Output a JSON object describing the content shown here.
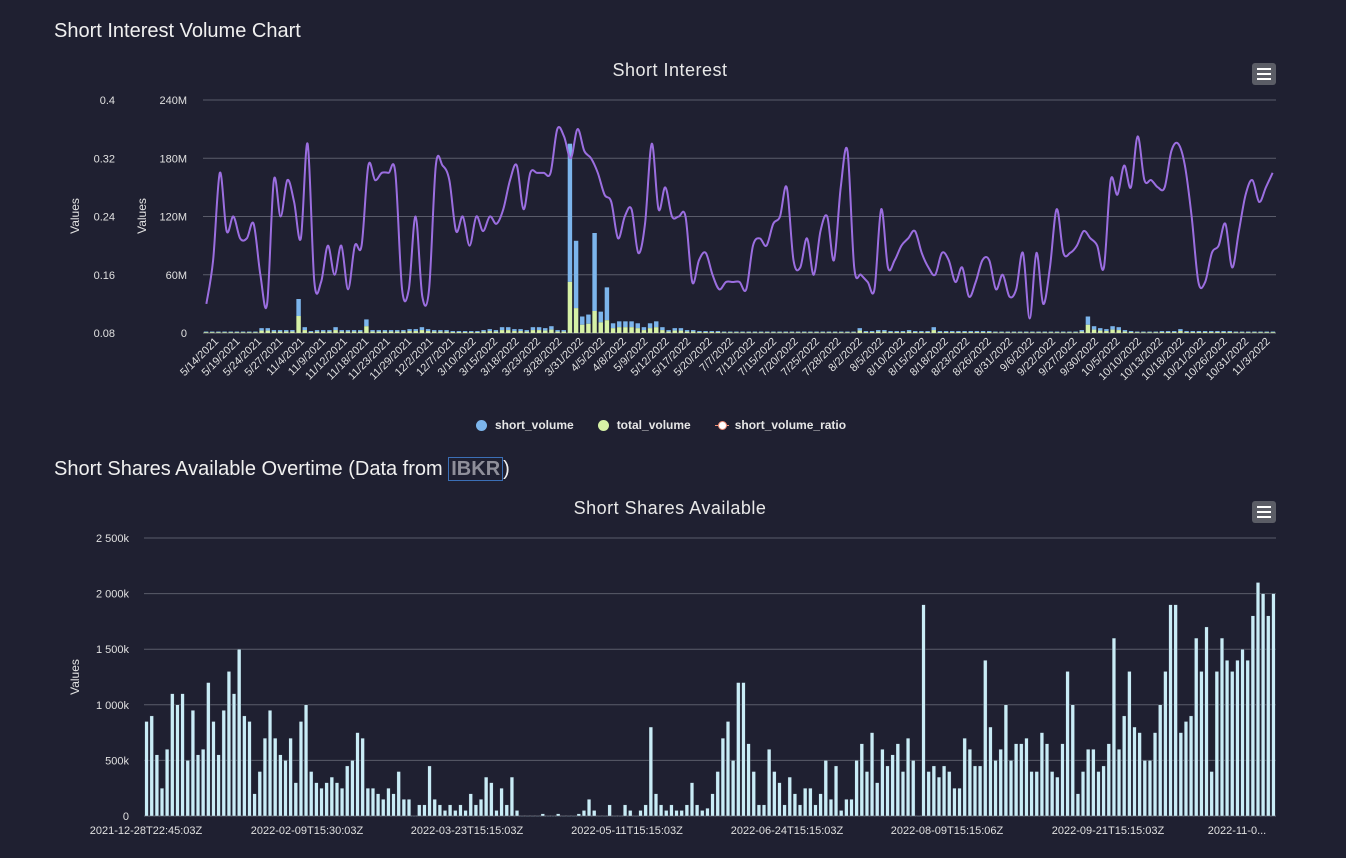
{
  "section1_title": "Short Interest Volume Chart",
  "section2": {
    "text": "Short Shares Available Overtime (Data from ",
    "link": "IBKR",
    "suffix": ")"
  },
  "colors": {
    "short_volume": "#7cb5ec",
    "total_volume": "#d6f1a6",
    "ratio": "#9b6ee0",
    "bars2": "#c9ecf6",
    "grid": "#5a5c6a",
    "background": "#1f2031"
  },
  "icons": {
    "menu": "hamburger-menu-icon"
  },
  "chart_data": [
    {
      "type": "bar",
      "title": "Short Interest",
      "ylabel_left": "Values",
      "ylabel_right": "Values",
      "y_volume_ticks": [
        "0",
        "60M",
        "120M",
        "180M",
        "240M"
      ],
      "y_ratio_ticks": [
        "0.08",
        "0.16",
        "0.24",
        "0.32",
        "0.4"
      ],
      "volume_range": [
        0,
        240000000
      ],
      "ratio_range": [
        0.08,
        0.4
      ],
      "x_tick_labels": [
        "5/14/2021",
        "5/19/2021",
        "5/24/2021",
        "5/27/2021",
        "11/4/2021",
        "11/9/2021",
        "11/12/2021",
        "11/18/2021",
        "11/23/2021",
        "11/29/2021",
        "12/2/2021",
        "12/7/2021",
        "3/10/2022",
        "3/15/2022",
        "3/18/2022",
        "3/23/2022",
        "3/28/2022",
        "3/31/2022",
        "4/5/2022",
        "4/8/2022",
        "5/9/2022",
        "5/12/2022",
        "5/17/2022",
        "5/20/2022",
        "7/7/2022",
        "7/12/2022",
        "7/15/2022",
        "7/20/2022",
        "7/25/2022",
        "7/28/2022",
        "8/2/2022",
        "8/5/2022",
        "8/10/2022",
        "8/15/2022",
        "8/18/2022",
        "8/23/2022",
        "8/26/2022",
        "8/31/2022",
        "9/6/2022",
        "9/22/2022",
        "9/27/2022",
        "9/30/2022",
        "10/5/2022",
        "10/10/2022",
        "10/13/2022",
        "10/18/2022",
        "10/21/2022",
        "10/26/2022",
        "10/31/2022",
        "11/3/2022"
      ],
      "legend": [
        "short_volume",
        "total_volume",
        "short_volume_ratio"
      ],
      "total_volume": [
        1.5,
        1.5,
        1.5,
        1.5,
        1.5,
        1.5,
        1.5,
        1.5,
        1.5,
        5,
        5,
        3,
        3,
        3,
        3,
        35,
        6,
        2,
        3,
        3,
        3,
        6,
        3,
        3,
        3,
        3,
        14,
        3,
        3,
        3,
        3,
        3,
        3,
        4,
        4,
        6,
        4,
        3,
        3,
        3,
        2,
        2,
        2,
        2,
        2,
        3,
        4,
        3,
        6,
        6,
        4,
        4,
        3,
        6,
        6,
        5,
        7,
        3,
        3,
        195,
        95,
        17,
        19,
        103,
        22,
        47,
        10,
        12,
        12,
        12,
        10,
        6,
        10,
        12,
        6,
        3,
        5,
        5,
        3,
        3,
        2,
        2,
        2,
        2,
        1.5,
        1.5,
        1.5,
        1.5,
        1.5,
        1.5,
        1.5,
        1.5,
        1.5,
        1.5,
        1.5,
        1.5,
        1.5,
        1.5,
        1.5,
        1.5,
        1.5,
        1.5,
        1.5,
        1.5,
        1.5,
        1.5,
        5,
        2,
        2,
        3,
        3,
        2,
        2,
        2,
        3,
        2,
        2,
        2,
        6,
        2,
        2,
        2,
        2,
        2,
        2,
        2,
        2,
        2,
        1.5,
        1.5,
        1.5,
        1.5,
        1.5,
        1.5,
        1.5,
        1.5,
        1.5,
        1.5,
        1.5,
        1.5,
        1.5,
        1.5,
        3,
        17,
        7,
        5,
        4,
        7,
        6,
        3,
        2,
        1.5,
        1.5,
        1.5,
        1.5,
        2,
        2,
        2,
        4,
        2,
        2,
        2,
        2,
        2,
        2,
        2,
        2,
        1.5,
        1.5,
        1.5,
        1.5,
        1.5,
        1.5,
        1.5
      ],
      "short_volume_share": [
        0.5,
        0.5,
        0.5,
        0.5,
        0.5,
        0.5,
        0.5,
        0.5,
        0.5,
        0.5,
        0.5,
        0.5,
        0.5,
        0.5,
        0.5,
        0.5,
        0.5,
        0.5,
        0.5,
        0.5,
        0.5,
        0.5,
        0.5,
        0.5,
        0.5,
        0.5,
        0.5,
        0.5,
        0.5,
        0.5,
        0.5,
        0.5,
        0.5,
        0.5,
        0.5,
        0.5,
        0.5,
        0.5,
        0.5,
        0.5,
        0.5,
        0.5,
        0.5,
        0.5,
        0.5,
        0.5,
        0.5,
        0.5,
        0.5,
        0.5,
        0.5,
        0.5,
        0.5,
        0.5,
        0.5,
        0.5,
        0.5,
        0.5,
        0.5,
        0.27,
        0.27,
        0.5,
        0.5,
        0.22,
        0.5,
        0.28,
        0.5,
        0.5,
        0.5,
        0.5,
        0.5,
        0.5,
        0.5,
        0.5,
        0.5,
        0.5,
        0.5,
        0.5,
        0.5,
        0.5,
        0.5,
        0.5,
        0.5,
        0.5,
        0.5,
        0.5,
        0.5,
        0.5,
        0.5,
        0.5,
        0.5,
        0.5,
        0.5,
        0.5,
        0.5,
        0.5,
        0.5,
        0.5,
        0.5,
        0.5,
        0.5,
        0.5,
        0.5,
        0.5,
        0.5,
        0.5,
        0.5,
        0.5,
        0.5,
        0.5,
        0.5,
        0.5,
        0.5,
        0.5,
        0.5,
        0.5,
        0.5,
        0.5,
        0.5,
        0.5,
        0.5,
        0.5,
        0.5,
        0.5,
        0.5,
        0.5,
        0.5,
        0.5,
        0.5,
        0.5,
        0.5,
        0.5,
        0.5,
        0.5,
        0.5,
        0.5,
        0.5,
        0.5,
        0.5,
        0.5,
        0.5,
        0.5,
        0.5,
        0.5,
        0.5,
        0.5,
        0.5,
        0.5,
        0.5,
        0.5,
        0.5,
        0.5,
        0.5,
        0.5,
        0.5,
        0.5,
        0.5,
        0.5,
        0.5,
        0.5,
        0.5,
        0.5,
        0.5,
        0.5,
        0.5,
        0.5,
        0.5,
        0.5,
        0.5,
        0.5,
        0.5,
        0.5,
        0.5,
        0.5,
        0.5,
        0.5,
        0.5
      ],
      "short_volume_ratio": [
        0.12,
        0.18,
        0.3,
        0.22,
        0.24,
        0.21,
        0.21,
        0.23,
        0.16,
        0.12,
        0.29,
        0.24,
        0.29,
        0.26,
        0.21,
        0.34,
        0.15,
        0.15,
        0.2,
        0.16,
        0.2,
        0.14,
        0.2,
        0.2,
        0.31,
        0.29,
        0.3,
        0.3,
        0.3,
        0.14,
        0.14,
        0.24,
        0.13,
        0.14,
        0.31,
        0.31,
        0.29,
        0.22,
        0.24,
        0.2,
        0.24,
        0.22,
        0.24,
        0.23,
        0.25,
        0.29,
        0.31,
        0.25,
        0.3,
        0.3,
        0.3,
        0.3,
        0.36,
        0.35,
        0.32,
        0.36,
        0.33,
        0.32,
        0.3,
        0.27,
        0.26,
        0.21,
        0.24,
        0.25,
        0.19,
        0.23,
        0.34,
        0.25,
        0.28,
        0.24,
        0.24,
        0.24,
        0.15,
        0.18,
        0.19,
        0.16,
        0.14,
        0.15,
        0.15,
        0.15,
        0.14,
        0.2,
        0.21,
        0.2,
        0.23,
        0.24,
        0.28,
        0.18,
        0.17,
        0.21,
        0.16,
        0.22,
        0.24,
        0.18,
        0.28,
        0.33,
        0.17,
        0.16,
        0.15,
        0.14,
        0.25,
        0.17,
        0.18,
        0.2,
        0.21,
        0.22,
        0.19,
        0.17,
        0.16,
        0.19,
        0.18,
        0.15,
        0.17,
        0.13,
        0.15,
        0.18,
        0.18,
        0.14,
        0.16,
        0.13,
        0.14,
        0.19,
        0.1,
        0.19,
        0.12,
        0.17,
        0.25,
        0.19,
        0.19,
        0.2,
        0.22,
        0.21,
        0.2,
        0.17,
        0.29,
        0.27,
        0.31,
        0.28,
        0.35,
        0.29,
        0.29,
        0.28,
        0.28,
        0.33,
        0.34,
        0.31,
        0.24,
        0.15,
        0.15,
        0.19,
        0.2,
        0.23,
        0.17,
        0.22,
        0.27,
        0.29,
        0.26,
        0.28,
        0.3
      ]
    },
    {
      "type": "bar",
      "title": "Short Shares Available",
      "ylabel": "Values",
      "y_ticks": [
        "0",
        "500k",
        "1 000k",
        "1 500k",
        "2 000k",
        "2 500k"
      ],
      "ylim": [
        0,
        2500000
      ],
      "x_tick_labels": [
        "2021-12-28T22:45:03Z",
        "2022-02-09T15:30:03Z",
        "2022-03-23T15:15:03Z",
        "2022-05-11T15:15:03Z",
        "2022-06-24T15:15:03Z",
        "2022-08-09T15:15:06Z",
        "2022-09-21T15:15:03Z",
        "2022-11-0..."
      ],
      "values_k": [
        850,
        900,
        550,
        250,
        600,
        1100,
        1000,
        1100,
        500,
        950,
        550,
        600,
        1200,
        850,
        550,
        950,
        1300,
        1100,
        1500,
        900,
        850,
        200,
        400,
        700,
        950,
        700,
        550,
        500,
        700,
        300,
        850,
        1000,
        400,
        300,
        250,
        300,
        350,
        300,
        250,
        450,
        500,
        750,
        700,
        250,
        250,
        200,
        150,
        250,
        200,
        400,
        150,
        150,
        0,
        100,
        100,
        450,
        150,
        100,
        50,
        100,
        50,
        100,
        50,
        200,
        100,
        150,
        350,
        300,
        50,
        250,
        100,
        350,
        50,
        0,
        0,
        0,
        0,
        20,
        0,
        0,
        20,
        0,
        0,
        0,
        20,
        50,
        150,
        50,
        0,
        0,
        100,
        0,
        0,
        100,
        50,
        0,
        50,
        100,
        800,
        200,
        100,
        50,
        100,
        50,
        50,
        100,
        300,
        100,
        50,
        70,
        200,
        400,
        700,
        850,
        500,
        1200,
        1200,
        650,
        400,
        100,
        100,
        600,
        400,
        300,
        100,
        350,
        200,
        100,
        250,
        250,
        100,
        200,
        500,
        150,
        450,
        50,
        150,
        150,
        500,
        650,
        400,
        750,
        300,
        600,
        450,
        550,
        650,
        400,
        700,
        500,
        0,
        1900,
        400,
        450,
        350,
        450,
        400,
        250,
        250,
        700,
        600,
        450,
        450,
        1400,
        800,
        500,
        600,
        1000,
        500,
        650,
        650,
        700,
        400,
        400,
        750,
        650,
        400,
        350,
        650,
        1300,
        1000,
        200,
        400,
        600,
        600,
        400,
        450,
        650,
        1600,
        600,
        900,
        1300,
        800,
        750,
        500,
        500,
        750,
        1000,
        1300,
        1900,
        1900,
        750,
        850,
        900,
        1600,
        1300,
        1700,
        400,
        1300,
        1600,
        1400,
        1300,
        1400,
        1500,
        1400,
        1800,
        2100,
        2000,
        1800,
        2000
      ]
    }
  ]
}
